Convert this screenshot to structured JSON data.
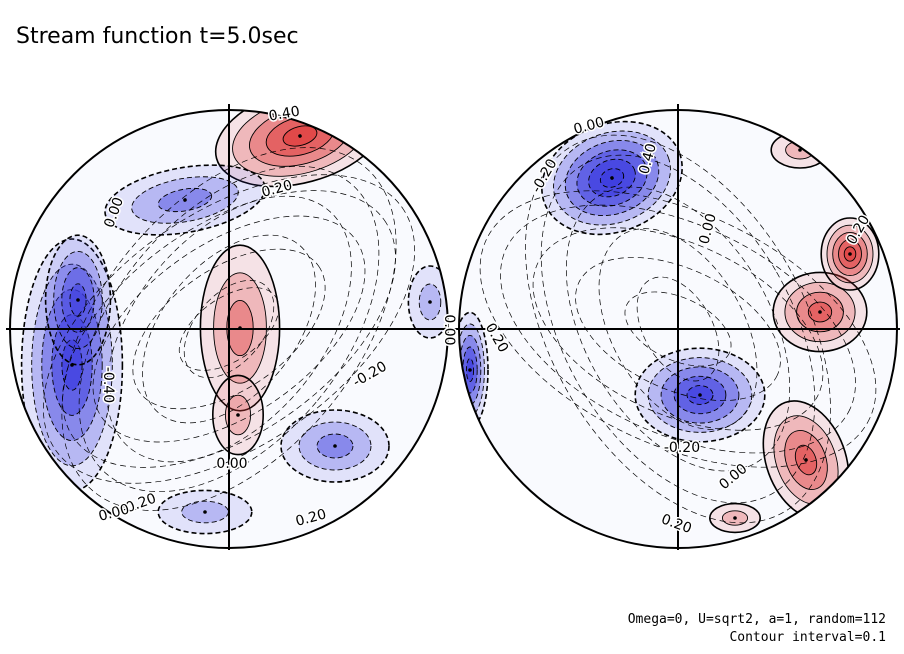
{
  "title": "Stream function t=5.0sec",
  "footer": {
    "params": "Omega=0, U=sqrt2, a=1, random=112",
    "interval": "Contour interval=0.1"
  },
  "colors": {
    "positive": "#e03c3c",
    "negative": "#3c3ce0",
    "background": "#ffffff",
    "line": "#000000"
  },
  "chart_data": [
    {
      "type": "heatmap",
      "projection": "orthographic",
      "title": "Stream function t=5.0sec",
      "contour_interval": 0.1,
      "contour_labels": [
        {
          "value": 0.4,
          "text": "0.40"
        },
        {
          "value": 0.2,
          "text": "0.20"
        },
        {
          "value": 0.0,
          "text": "0.00"
        },
        {
          "value": 0.0,
          "text": "0.00"
        },
        {
          "value": 0.0,
          "text": "0.00"
        },
        {
          "value": -0.2,
          "text": "-0.20"
        },
        {
          "value": -0.4,
          "text": "-0.40"
        },
        {
          "value": -0.2,
          "text": "-0.20"
        },
        {
          "value": 0.0,
          "text": "0.00"
        },
        {
          "value": 0.2,
          "text": "0.20"
        }
      ],
      "extrema": [
        {
          "kind": "max",
          "value": 0.5
        },
        {
          "kind": "max",
          "value": 0.3
        },
        {
          "kind": "max",
          "value": 0.2
        },
        {
          "kind": "min",
          "value": -0.5
        },
        {
          "kind": "min",
          "value": -0.4
        },
        {
          "kind": "min",
          "value": -0.3
        },
        {
          "kind": "min",
          "value": -0.3
        },
        {
          "kind": "min",
          "value": -0.2
        },
        {
          "kind": "min",
          "value": -0.2
        },
        {
          "kind": "min",
          "value": -0.2
        }
      ]
    },
    {
      "type": "heatmap",
      "projection": "orthographic",
      "contour_interval": 0.1,
      "contour_labels": [
        {
          "value": 0.0,
          "text": "0.00"
        },
        {
          "value": -0.2,
          "text": "-0.20"
        },
        {
          "value": 0.4,
          "text": "0.40"
        },
        {
          "value": 0.0,
          "text": "0.00"
        },
        {
          "value": 0.2,
          "text": "0.20"
        },
        {
          "value": 0.2,
          "text": "0.20"
        },
        {
          "value": -0.2,
          "text": "-0.20"
        },
        {
          "value": 0.0,
          "text": "0.00"
        },
        {
          "value": 0.2,
          "text": "0.20"
        }
      ],
      "extrema": [
        {
          "kind": "min",
          "value": -0.6
        },
        {
          "kind": "min",
          "value": -0.5
        },
        {
          "kind": "min",
          "value": -0.5
        },
        {
          "kind": "max",
          "value": 0.4
        },
        {
          "kind": "max",
          "value": 0.5
        },
        {
          "kind": "max",
          "value": 0.4
        },
        {
          "kind": "max",
          "value": 0.2
        },
        {
          "kind": "max",
          "value": 0.2
        }
      ]
    }
  ]
}
